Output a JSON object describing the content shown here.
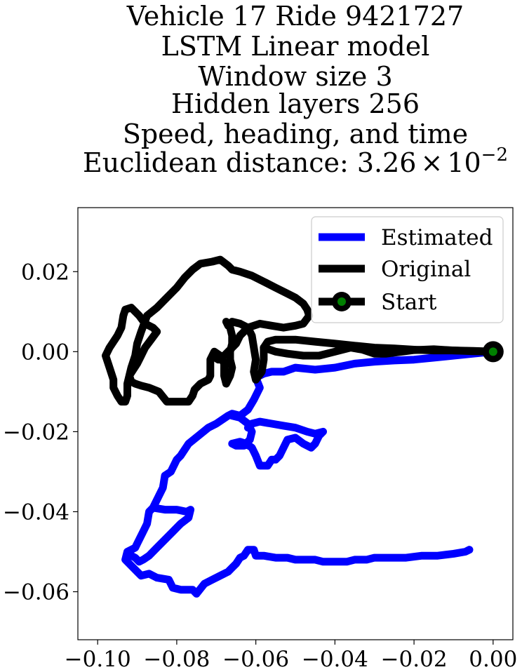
{
  "chart_data": {
    "type": "line",
    "title_lines": [
      "Vehicle 17 Ride 9421727",
      "LSTM Linear model",
      "Window size 3",
      "Hidden layers 256",
      "Speed, heading, and time"
    ],
    "title_metric_prefix": "Euclidean distance: 3.26",
    "title_metric_times": "×",
    "title_metric_base": "10",
    "title_metric_exponent": "−2",
    "xlabel": "",
    "ylabel": "",
    "xlim": [
      -0.105,
      0.005
    ],
    "ylim": [
      -0.072,
      0.036
    ],
    "xticks": [
      -0.1,
      -0.08,
      -0.06,
      -0.04,
      -0.02,
      0.0
    ],
    "xtick_labels": [
      "−0.10",
      "−0.08",
      "−0.06",
      "−0.04",
      "−0.02",
      "0.00"
    ],
    "yticks": [
      0.02,
      0.0,
      -0.02,
      -0.04,
      -0.06
    ],
    "ytick_labels": [
      "0.02",
      "0.00",
      "−0.02",
      "−0.04",
      "−0.06"
    ],
    "grid": false,
    "legend_position": "top-right",
    "series": [
      {
        "name": "Estimated",
        "color": "#0000ff",
        "points": [
          [
            0.0,
            0.0
          ],
          [
            -0.005,
            -0.0005
          ],
          [
            -0.01,
            -0.001
          ],
          [
            -0.015,
            -0.0015
          ],
          [
            -0.02,
            -0.002
          ],
          [
            -0.025,
            -0.0022
          ],
          [
            -0.03,
            -0.0025
          ],
          [
            -0.035,
            -0.003
          ],
          [
            -0.04,
            -0.004
          ],
          [
            -0.045,
            -0.0045
          ],
          [
            -0.05,
            -0.004
          ],
          [
            -0.053,
            -0.005
          ],
          [
            -0.056,
            -0.005
          ],
          [
            -0.058,
            -0.0055
          ],
          [
            -0.06,
            -0.0065
          ],
          [
            -0.059,
            -0.009
          ],
          [
            -0.0605,
            -0.012
          ],
          [
            -0.062,
            -0.0145
          ],
          [
            -0.064,
            -0.016
          ],
          [
            -0.066,
            -0.0155
          ],
          [
            -0.067,
            -0.016
          ],
          [
            -0.07,
            -0.018
          ],
          [
            -0.072,
            -0.019
          ],
          [
            -0.0745,
            -0.021
          ],
          [
            -0.077,
            -0.023
          ],
          [
            -0.079,
            -0.026
          ],
          [
            -0.08,
            -0.027
          ],
          [
            -0.0815,
            -0.03
          ],
          [
            -0.083,
            -0.031
          ],
          [
            -0.0835,
            -0.034
          ],
          [
            -0.085,
            -0.037
          ],
          [
            -0.086,
            -0.039
          ],
          [
            -0.087,
            -0.04
          ],
          [
            -0.0875,
            -0.043
          ],
          [
            -0.0885,
            -0.045
          ],
          [
            -0.09,
            -0.048
          ],
          [
            -0.0905,
            -0.049
          ],
          [
            -0.0925,
            -0.05
          ],
          [
            -0.093,
            -0.052
          ],
          [
            -0.092,
            -0.053
          ],
          [
            -0.09,
            -0.055
          ],
          [
            -0.089,
            -0.056
          ],
          [
            -0.087,
            -0.0555
          ],
          [
            -0.085,
            -0.0565
          ],
          [
            -0.082,
            -0.057
          ],
          [
            -0.081,
            -0.059
          ],
          [
            -0.079,
            -0.0595
          ],
          [
            -0.076,
            -0.0595
          ],
          [
            -0.075,
            -0.0605
          ],
          [
            -0.073,
            -0.058
          ],
          [
            -0.071,
            -0.057
          ],
          [
            -0.069,
            -0.056
          ],
          [
            -0.067,
            -0.055
          ],
          [
            -0.066,
            -0.054
          ],
          [
            -0.065,
            -0.053
          ],
          [
            -0.064,
            -0.0515
          ],
          [
            -0.063,
            -0.051
          ],
          [
            -0.062,
            -0.0495
          ],
          [
            -0.0605,
            -0.0495
          ],
          [
            -0.06,
            -0.051
          ],
          [
            -0.058,
            -0.051
          ],
          [
            -0.055,
            -0.0515
          ],
          [
            -0.052,
            -0.0515
          ],
          [
            -0.05,
            -0.052
          ],
          [
            -0.047,
            -0.052
          ],
          [
            -0.045,
            -0.052
          ],
          [
            -0.043,
            -0.0525
          ],
          [
            -0.04,
            -0.0525
          ],
          [
            -0.037,
            -0.0525
          ],
          [
            -0.035,
            -0.052
          ],
          [
            -0.032,
            -0.052
          ],
          [
            -0.03,
            -0.0515
          ],
          [
            -0.026,
            -0.0515
          ],
          [
            -0.022,
            -0.0515
          ],
          [
            -0.018,
            -0.051
          ],
          [
            -0.014,
            -0.051
          ],
          [
            -0.01,
            -0.0505
          ],
          [
            -0.007,
            -0.05
          ],
          [
            -0.006,
            -0.0495
          ]
        ]
      },
      {
        "name": "Estimated",
        "color": "#0000ff",
        "points": [
          [
            -0.066,
            -0.016
          ],
          [
            -0.064,
            -0.0165
          ],
          [
            -0.062,
            -0.018
          ],
          [
            -0.061,
            -0.02
          ],
          [
            -0.0615,
            -0.022
          ],
          [
            -0.063,
            -0.0235
          ],
          [
            -0.065,
            -0.0235
          ],
          [
            -0.066,
            -0.023
          ],
          [
            -0.064,
            -0.0225
          ],
          [
            -0.0625,
            -0.023
          ],
          [
            -0.061,
            -0.024
          ],
          [
            -0.06,
            -0.026
          ],
          [
            -0.059,
            -0.0285
          ],
          [
            -0.057,
            -0.0285
          ],
          [
            -0.056,
            -0.027
          ],
          [
            -0.055,
            -0.027
          ],
          [
            -0.054,
            -0.026
          ],
          [
            -0.053,
            -0.024
          ],
          [
            -0.052,
            -0.022
          ],
          [
            -0.05,
            -0.0215
          ],
          [
            -0.048,
            -0.023
          ],
          [
            -0.046,
            -0.024
          ],
          [
            -0.045,
            -0.023
          ],
          [
            -0.044,
            -0.021
          ],
          [
            -0.043,
            -0.02
          ],
          [
            -0.045,
            -0.0205
          ],
          [
            -0.047,
            -0.02
          ],
          [
            -0.05,
            -0.019
          ],
          [
            -0.053,
            -0.0185
          ],
          [
            -0.056,
            -0.018
          ],
          [
            -0.059,
            -0.0175
          ],
          [
            -0.061,
            -0.018
          ],
          [
            -0.062,
            -0.019
          ]
        ]
      },
      {
        "name": "Estimated",
        "color": "#0000ff",
        "points": [
          [
            -0.086,
            -0.039
          ],
          [
            -0.083,
            -0.0395
          ],
          [
            -0.08,
            -0.0395
          ],
          [
            -0.0775,
            -0.04
          ],
          [
            -0.0765,
            -0.0395
          ],
          [
            -0.077,
            -0.0415
          ],
          [
            -0.079,
            -0.043
          ],
          [
            -0.081,
            -0.045
          ],
          [
            -0.083,
            -0.047
          ],
          [
            -0.085,
            -0.049
          ],
          [
            -0.087,
            -0.051
          ],
          [
            -0.0885,
            -0.052
          ],
          [
            -0.0895,
            -0.0525
          ],
          [
            -0.0905,
            -0.0515
          ],
          [
            -0.0915,
            -0.051
          ]
        ]
      },
      {
        "name": "Original",
        "color": "#000000",
        "points": [
          [
            0.0,
            0.0
          ],
          [
            -0.005,
            0.0002
          ],
          [
            -0.01,
            0.0003
          ],
          [
            -0.015,
            0.0003
          ],
          [
            -0.02,
            0.0005
          ],
          [
            -0.025,
            0.0008
          ],
          [
            -0.03,
            0.001
          ],
          [
            -0.035,
            0.0015
          ],
          [
            -0.04,
            0.002
          ],
          [
            -0.045,
            0.0025
          ],
          [
            -0.05,
            0.003
          ],
          [
            -0.055,
            0.003
          ],
          [
            -0.057,
            0.0025
          ],
          [
            -0.058,
            0.001
          ],
          [
            -0.058,
            -0.002
          ],
          [
            -0.0585,
            -0.005
          ],
          [
            -0.06,
            -0.007
          ],
          [
            -0.0605,
            -0.005
          ],
          [
            -0.06,
            -0.002
          ],
          [
            -0.0605,
            0.001
          ],
          [
            -0.061,
            0.004
          ],
          [
            -0.062,
            0.006
          ],
          [
            -0.064,
            0.007
          ],
          [
            -0.066,
            0.0075
          ],
          [
            -0.067,
            0.0065
          ],
          [
            -0.0675,
            0.0075
          ],
          [
            -0.0665,
            0.006
          ],
          [
            -0.066,
            0.004
          ],
          [
            -0.066,
            0.002
          ],
          [
            -0.0665,
            0.0
          ],
          [
            -0.0665,
            -0.002
          ],
          [
            -0.066,
            -0.004
          ],
          [
            -0.0665,
            -0.006
          ],
          [
            -0.0675,
            -0.008
          ],
          [
            -0.068,
            -0.006
          ],
          [
            -0.068,
            -0.003
          ],
          [
            -0.069,
            -0.001
          ],
          [
            -0.0705,
            0.0
          ],
          [
            -0.071,
            -0.001
          ],
          [
            -0.0715,
            -0.002
          ],
          [
            -0.0715,
            -0.004
          ],
          [
            -0.0715,
            -0.006
          ],
          [
            -0.072,
            -0.007
          ],
          [
            -0.074,
            -0.008
          ],
          [
            -0.0755,
            -0.0095
          ],
          [
            -0.076,
            -0.011
          ],
          [
            -0.077,
            -0.0125
          ],
          [
            -0.08,
            -0.0125
          ],
          [
            -0.0825,
            -0.0125
          ],
          [
            -0.0845,
            -0.01
          ],
          [
            -0.087,
            -0.009
          ],
          [
            -0.089,
            -0.0085
          ],
          [
            -0.0905,
            -0.008
          ],
          [
            -0.0915,
            -0.0075
          ],
          [
            -0.092,
            -0.006
          ],
          [
            -0.09,
            -0.003
          ],
          [
            -0.089,
            -0.001
          ],
          [
            -0.088,
            0.001
          ],
          [
            -0.0865,
            0.003
          ],
          [
            -0.085,
            0.005
          ],
          [
            -0.086,
            0.006
          ],
          [
            -0.088,
            0.007
          ],
          [
            -0.0895,
            0.009
          ],
          [
            -0.0915,
            0.011
          ],
          [
            -0.093,
            0.0105
          ],
          [
            -0.0935,
            0.009
          ],
          [
            -0.094,
            0.006
          ],
          [
            -0.095,
            0.004
          ],
          [
            -0.097,
            0.001
          ],
          [
            -0.098,
            -0.001
          ],
          [
            -0.097,
            -0.004
          ],
          [
            -0.096,
            -0.007
          ],
          [
            -0.096,
            -0.009
          ],
          [
            -0.095,
            -0.011
          ],
          [
            -0.094,
            -0.0125
          ],
          [
            -0.093,
            -0.0125
          ],
          [
            -0.0925,
            -0.011
          ],
          [
            -0.0925,
            -0.008
          ],
          [
            -0.0915,
            -0.004
          ],
          [
            -0.0905,
            -0.001
          ],
          [
            -0.09,
            0.002
          ],
          [
            -0.089,
            0.005
          ],
          [
            -0.0875,
            0.009
          ],
          [
            -0.085,
            0.011
          ],
          [
            -0.0835,
            0.0125
          ],
          [
            -0.082,
            0.014
          ],
          [
            -0.08,
            0.016
          ],
          [
            -0.078,
            0.0185
          ],
          [
            -0.076,
            0.0205
          ],
          [
            -0.074,
            0.022
          ],
          [
            -0.071,
            0.0225
          ],
          [
            -0.069,
            0.023
          ],
          [
            -0.067,
            0.0215
          ],
          [
            -0.066,
            0.0205
          ],
          [
            -0.064,
            0.02
          ],
          [
            -0.061,
            0.019
          ],
          [
            -0.058,
            0.0175
          ],
          [
            -0.055,
            0.016
          ],
          [
            -0.052,
            0.0145
          ],
          [
            -0.05,
            0.0135
          ],
          [
            -0.048,
            0.012
          ],
          [
            -0.047,
            0.0105
          ],
          [
            -0.0465,
            0.009
          ],
          [
            -0.048,
            0.007
          ],
          [
            -0.05,
            0.0065
          ],
          [
            -0.053,
            0.006
          ],
          [
            -0.056,
            0.0065
          ],
          [
            -0.059,
            0.007
          ],
          [
            -0.062,
            0.006
          ],
          [
            -0.064,
            0.004
          ],
          [
            -0.065,
            0.002
          ],
          [
            -0.0665,
            0.0005
          ],
          [
            -0.068,
            -0.001
          ],
          [
            -0.0695,
            -0.002
          ],
          [
            -0.071,
            -0.001
          ]
        ]
      },
      {
        "name": "Original",
        "color": "#000000",
        "points": [
          [
            -0.058,
            0.001
          ],
          [
            -0.055,
            0.0
          ],
          [
            -0.052,
            -0.0005
          ],
          [
            -0.048,
            -0.001
          ],
          [
            -0.044,
            -0.001
          ],
          [
            -0.04,
            0.0
          ],
          [
            -0.036,
            0.001
          ],
          [
            -0.033,
            0.0005
          ],
          [
            -0.03,
            -0.0005
          ],
          [
            -0.027,
            -0.0005
          ],
          [
            -0.023,
            0.0
          ],
          [
            -0.02,
            0.0004
          ],
          [
            -0.015,
            0.0006
          ],
          [
            -0.01,
            0.0003
          ],
          [
            -0.005,
            0.0001
          ],
          [
            0.0,
            0.0
          ]
        ]
      }
    ],
    "start_point": {
      "x": 0.0,
      "y": 0.0
    },
    "legend": [
      {
        "label": "Estimated",
        "color": "#0000ff",
        "marker": "none"
      },
      {
        "label": "Original",
        "color": "#000000",
        "marker": "none"
      },
      {
        "label": "Start",
        "color": "#000000",
        "marker": "circle",
        "marker_face": "#008000"
      }
    ]
  }
}
